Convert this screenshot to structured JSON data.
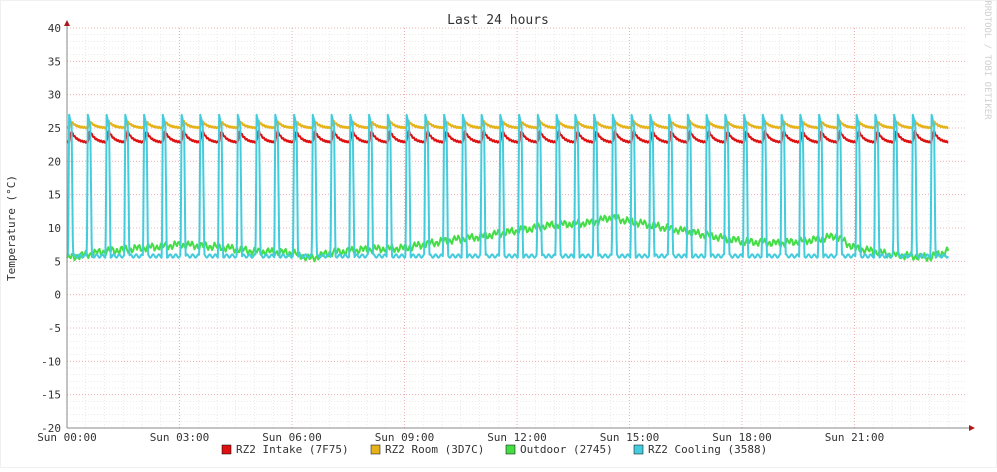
{
  "chart_data": {
    "type": "line",
    "title": "Last 24 hours",
    "ylabel": "Temperature (°C)",
    "xlabel": "",
    "watermark": "RRDTOOL / TOBI OETIKER",
    "ylim": [
      -20,
      40
    ],
    "xlim_hours": [
      0,
      24
    ],
    "yticks": [
      40,
      35,
      30,
      25,
      20,
      15,
      10,
      5,
      0,
      -5,
      -10,
      -15,
      -20
    ],
    "xtick_hours": [
      0,
      3,
      6,
      9,
      12,
      15,
      18,
      21
    ],
    "xtick_labels": [
      "Sun 00:00",
      "Sun 03:00",
      "Sun 06:00",
      "Sun 09:00",
      "Sun 12:00",
      "Sun 15:00",
      "Sun 18:00",
      "Sun 21:00"
    ],
    "grid": true,
    "legend_position": "bottom",
    "colors": {
      "background": "#ffffff",
      "frame": "#f0f0f0",
      "grid_major": "#e8a0a0",
      "grid_minor": "#dddddd",
      "axis": "#888888",
      "arrow": "#aa1a1a",
      "text": "#333333"
    },
    "series": [
      {
        "name": "RZ2 Intake (7F75)",
        "color": "#dd1111",
        "pattern": "sawtooth",
        "period_hours": 0.5,
        "phase_hours": 0.05,
        "low": 22.8,
        "high": 24.6,
        "start_hour": 0,
        "end_hour": 23.5
      },
      {
        "name": "RZ2 Room (3D7C)",
        "color": "#e6b21a",
        "pattern": "sawtooth",
        "period_hours": 0.5,
        "phase_hours": 0.05,
        "low": 25.0,
        "high": 26.0,
        "start_hour": 0,
        "end_hour": 23.5
      },
      {
        "name": "Outdoor (2745)",
        "color": "#44dd44",
        "pattern": "trend",
        "points": [
          [
            0,
            5.5
          ],
          [
            1,
            6.5
          ],
          [
            2,
            7.0
          ],
          [
            3,
            7.5
          ],
          [
            4,
            7.2
          ],
          [
            5,
            6.5
          ],
          [
            6,
            6.3
          ],
          [
            6.5,
            5.4
          ],
          [
            7,
            6.3
          ],
          [
            8,
            6.8
          ],
          [
            9,
            7.0
          ],
          [
            10,
            8.0
          ],
          [
            11,
            8.7
          ],
          [
            12,
            9.6
          ],
          [
            13,
            10.5
          ],
          [
            14,
            10.8
          ],
          [
            14.5,
            11.6
          ],
          [
            15,
            11.0
          ],
          [
            16,
            10.0
          ],
          [
            17,
            9.0
          ],
          [
            18,
            8.0
          ],
          [
            19,
            7.7
          ],
          [
            20,
            8.3
          ],
          [
            20.5,
            8.8
          ],
          [
            21,
            7.0
          ],
          [
            22,
            6.0
          ],
          [
            23,
            5.6
          ],
          [
            23.5,
            6.6
          ]
        ],
        "start_hour": 0,
        "end_hour": 23.5
      },
      {
        "name": "RZ2 Cooling (3588)",
        "color": "#44ccdd",
        "pattern": "pulse",
        "period_hours": 0.5,
        "phase_hours": 0.03,
        "low": 5.8,
        "high": 27.0,
        "start_hour": 0,
        "end_hour": 23.5
      }
    ]
  }
}
